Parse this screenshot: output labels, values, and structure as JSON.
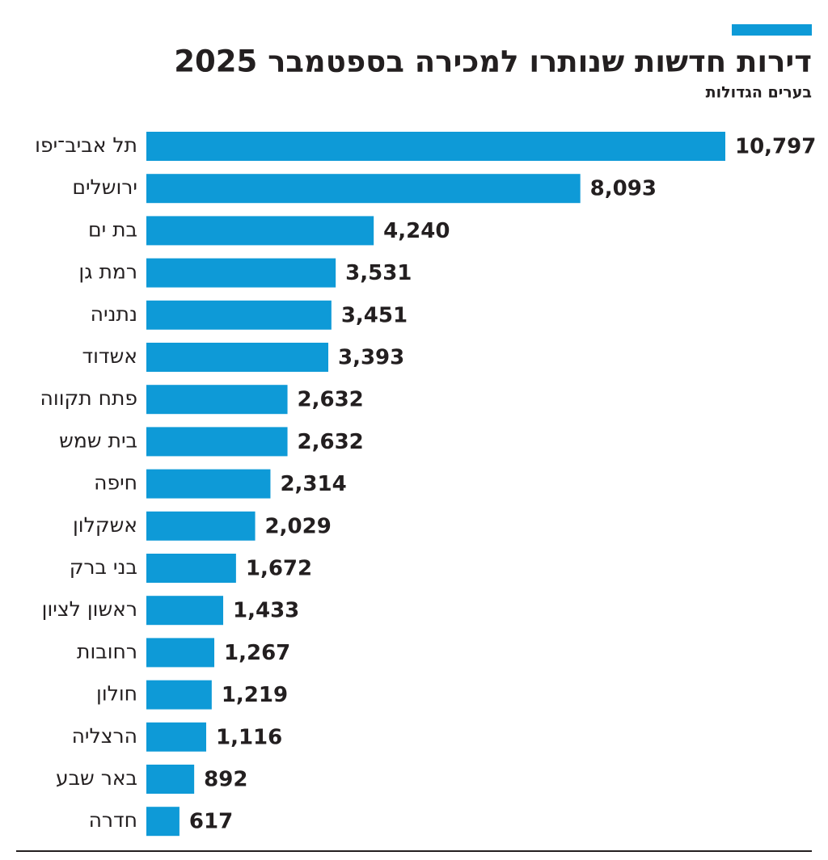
{
  "chart_data": {
    "type": "bar",
    "orientation": "horizontal",
    "title": "דירות חדשות שנותרו למכירה בספטמבר 2025",
    "subtitle": "בערים הגדולות",
    "categories": [
      "תל אביב־יפו",
      "ירושלים",
      "בת ים",
      "רמת גן",
      "נתניה",
      "אשדוד",
      "פתח תקווה",
      "בית שמש",
      "חיפה",
      "אשקלון",
      "בני ברק",
      "ראשון לציון",
      "רחובות",
      "חולון",
      "הרצליה",
      "באר שבע",
      "חדרה"
    ],
    "values": [
      10797,
      8093,
      4240,
      3531,
      3451,
      3393,
      2632,
      2632,
      2314,
      2029,
      1672,
      1433,
      1267,
      1219,
      1116,
      892,
      617
    ],
    "value_labels": [
      "10,797",
      "8,093",
      "4,240",
      "3,531",
      "3,451",
      "3,393",
      "2,632",
      "2,632",
      "2,314",
      "2,029",
      "1,672",
      "1,433",
      "1,267",
      "1,219",
      "1,116",
      "892",
      "617"
    ],
    "color": "#0e9ad7"
  }
}
